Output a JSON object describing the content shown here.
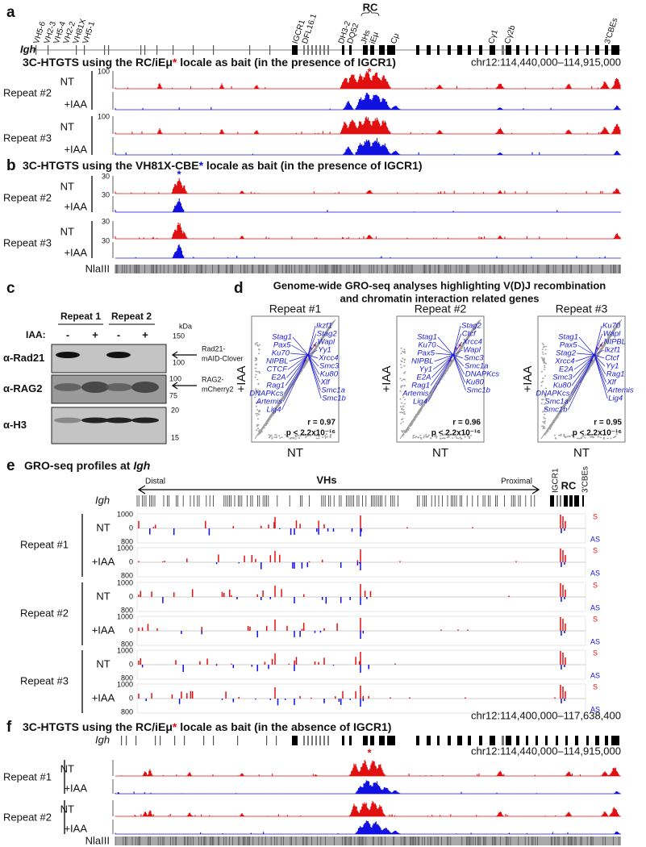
{
  "panel_a": {
    "letter": "a",
    "locus": "Igh",
    "gene_labels": [
      "VH5-6",
      "VH2-3",
      "VH5-4",
      "VH2-2",
      "VH81X",
      "VH5-1",
      "IGCR1",
      "DFL16.1",
      "DH3-2",
      "DQ52",
      "JHs",
      "iEμ",
      "Cμ",
      "Cγ1",
      "Cγ2b",
      "3'CBEs"
    ],
    "rc": "RC",
    "title": {
      "pre": "3C-HTGTS using the RC/iEμ",
      "star": "*",
      "post": " locale as bait (in the presence of IGCR1)"
    },
    "coords": "chr12:114,440,000–114,915,000",
    "peak_star": "*",
    "repeats": [
      {
        "label": "Repeat #2",
        "nt": "NT",
        "iaa": "+IAA",
        "tick": "100"
      },
      {
        "label": "Repeat #3",
        "nt": "NT",
        "iaa": "+IAA",
        "tick": "100"
      }
    ]
  },
  "panel_b": {
    "letter": "b",
    "title": {
      "pre": "3C-HTGTS using the VH81X-CBE",
      "star": "*",
      "post": " locale as bait (in the presence of IGCR1)"
    },
    "peak_star": "*",
    "repeats": [
      {
        "label": "Repeat #2",
        "nt": "NT",
        "iaa": "+IAA",
        "tick": "30"
      },
      {
        "label": "Repeat #3",
        "nt": "NT",
        "iaa": "+IAA",
        "tick": "30"
      }
    ],
    "nlaiii": "NlaIII"
  },
  "panel_c": {
    "letter": "c",
    "headers": [
      "Repeat 1",
      "Repeat 2"
    ],
    "iaa_label": "IAA:",
    "lanes": [
      "-",
      "+",
      "-",
      "+"
    ],
    "kda": "kDa",
    "markers": [
      "150",
      "100",
      "100",
      "75",
      "20",
      "15"
    ],
    "antibodies": [
      "α-Rad21",
      "α-RAG2",
      "α-H3"
    ],
    "band_labels": [
      [
        "Rad21-",
        "mAID-Clover"
      ],
      [
        "RAG2-",
        "mCherry2"
      ]
    ]
  },
  "panel_d": {
    "letter": "d",
    "title": [
      "Genome-wide GRO-seq analyses highlighting V(D)J recombination",
      "and chromatin interaction related genes"
    ],
    "plots": [
      {
        "title": "Repeat #1",
        "y_label": "+IAA",
        "x_label": "NT",
        "genes": [
          "Stag1",
          "Ikzf1",
          "Pax5",
          "Stag2",
          "Ku70",
          "Wapl",
          "NIPBL",
          "Yy1",
          "CTCF",
          "Xrcc4",
          "E2A",
          "Smc3",
          "Rag1",
          "Ku80",
          "DNAPKcs",
          "Xlf",
          "Artemis",
          "Smc1a",
          "Lig4",
          "Smc1b"
        ],
        "r": "r = 0.97",
        "p": "p < 2.2x10⁻¹⁶"
      },
      {
        "title": "Repeat #2",
        "y_label": "+IAA",
        "x_label": "NT",
        "genes": [
          "Stag1",
          "Stag2",
          "Ku70",
          "Ctcf",
          "Pax5",
          "Xrcc4",
          "NIPBL",
          "Wapl",
          "Yy1",
          "Smc3",
          "E2A",
          "Smc1a",
          "Rag1",
          "DNAPKcs",
          "Artemis",
          "Ku80",
          "Lig4",
          "Smc1b"
        ],
        "r": "r = 0.96",
        "p": "p < 2.2x10⁻¹⁶"
      },
      {
        "title": "Repeat #3",
        "y_label": "+IAA",
        "x_label": "NT",
        "genes": [
          "Stag1",
          "Ku70",
          "Pax5",
          "Wapl",
          "Stag2",
          "NIPBL",
          "Xrcc4",
          "Ikzf1",
          "E2A",
          "Ctcf",
          "Smc3",
          "Yy1",
          "Ku80",
          "Rag1",
          "DNAPKcs",
          "Xlf",
          "Smc1a",
          "Artemis",
          "Smc1b",
          "Lig4"
        ],
        "r": "r = 0.95",
        "p": "p < 2.2x10⁻¹⁶"
      }
    ]
  },
  "panel_e": {
    "letter": "e",
    "title_pre": "GRO-seq profiles at ",
    "title_locus": "Igh",
    "distal": "Distal",
    "vhs": "VHs",
    "proximal": "Proximal",
    "locus": "Igh",
    "gene_labels": [
      "IGCR1",
      "RC",
      "3'CBEs"
    ],
    "repeats": [
      {
        "label": "Repeat #1",
        "rows": [
          "NT",
          "+IAA"
        ]
      },
      {
        "label": "Repeat #2",
        "rows": [
          "NT",
          "+IAA"
        ]
      },
      {
        "label": "Repeat #3",
        "rows": [
          "NT",
          "+IAA"
        ]
      }
    ],
    "ticks": [
      "1000",
      "0",
      "800"
    ],
    "strands": [
      "S",
      "AS"
    ],
    "coords": "chr12:114,400,000–117,638,400"
  },
  "panel_f": {
    "letter": "f",
    "title": {
      "pre": "3C-HTGTS using the RC/iEμ",
      "star": "*",
      "post": " locale as bait (in the absence of IGCR1)"
    },
    "locus": "Igh",
    "coords": "chr12:114,440,000–114,915,000",
    "peak_star": "*",
    "repeats": [
      {
        "label": "Repeat #1",
        "nt": "NT",
        "iaa": "+IAA"
      },
      {
        "label": "Repeat #2",
        "nt": "NT",
        "iaa": "+IAA"
      }
    ],
    "nlaiii": "NlaIII"
  }
}
